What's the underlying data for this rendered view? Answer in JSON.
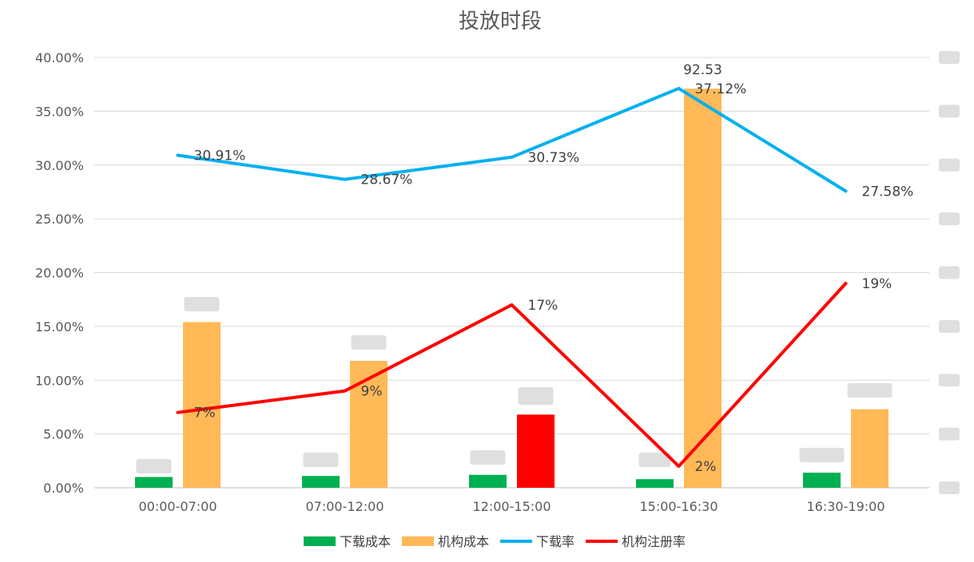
{
  "chart_data": {
    "type": "bar",
    "title": "投放时段",
    "categories": [
      "00:00-07:00",
      "07:00-12:00",
      "12:00-15:00",
      "15:00-16:30",
      "16:30-19:00"
    ],
    "ylim": [
      0,
      0.4
    ],
    "yticks": [
      "0.00%",
      "5.00%",
      "10.00%",
      "15.00%",
      "20.00%",
      "25.00%",
      "30.00%",
      "35.00%",
      "40.00%"
    ],
    "grid": true,
    "legend_position": "bottom",
    "bar_series": [
      {
        "name": "下载成本",
        "color": "#00b050",
        "values": [
          0.01,
          0.011,
          0.012,
          0.008,
          0.014
        ],
        "labels": [
          "",
          "",
          "",
          "",
          ""
        ]
      },
      {
        "name": "机构成本",
        "color": "#ffb957",
        "values": [
          0.154,
          0.118,
          0.068,
          0.371,
          0.073
        ],
        "labels": [
          "",
          "",
          "",
          "92.53",
          ""
        ],
        "highlight": {
          "index": 2,
          "color": "#ff0000"
        }
      }
    ],
    "line_series": [
      {
        "name": "下载率",
        "color": "#00b0f0",
        "values": [
          0.3091,
          0.2867,
          0.3073,
          0.3712,
          0.2758
        ],
        "labels": [
          "30.91%",
          "28.67%",
          "30.73%",
          "37.12%",
          "27.58%"
        ]
      },
      {
        "name": "机构注册率",
        "color": "#ff0000",
        "values": [
          0.07,
          0.09,
          0.17,
          0.02,
          0.19
        ],
        "labels": [
          "7%",
          "9%",
          "17%",
          "2%",
          "19%"
        ]
      }
    ]
  }
}
